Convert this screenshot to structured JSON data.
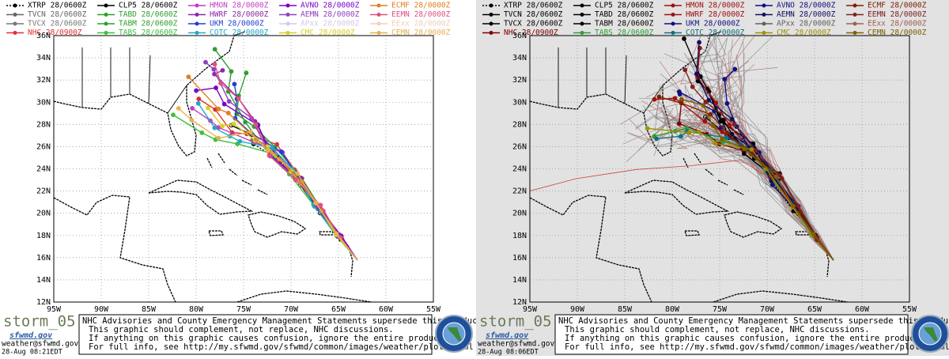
{
  "panels": [
    {
      "background": "#ffffff",
      "legend": [
        {
          "label": "XTRP 28/0600Z",
          "color": "#000000"
        },
        {
          "label": "TVCN 28/0600Z",
          "color": "#666666"
        },
        {
          "label": "TVCX 28/0600Z",
          "color": "#777777"
        },
        {
          "label": "NHC 28/0900Z",
          "color": "#e03030"
        },
        {
          "label": "CLP5 28/0600Z",
          "color": "#000000"
        },
        {
          "label": "TABD 28/0600Z",
          "color": "#2e9e2e"
        },
        {
          "label": "TABM 28/0600Z",
          "color": "#2e9e2e"
        },
        {
          "label": "TABS 28/0600Z",
          "color": "#3cc03c"
        },
        {
          "label": "HMON 28/0000Z",
          "color": "#c040c0"
        },
        {
          "label": "HWRF 28/0000Z",
          "color": "#8a2aa8"
        },
        {
          "label": "UKM 28/0000Z",
          "color": "#2040d0"
        },
        {
          "label": "COTC 28/0000Z",
          "color": "#20a8c8"
        },
        {
          "label": "AVNO 28/0000Z",
          "color": "#7a00c8"
        },
        {
          "label": "AEMN 28/0000Z",
          "color": "#9040c0"
        },
        {
          "label": "APxx 28/0000Z",
          "color": "#d8c8e8"
        },
        {
          "label": "CMC 28/0000Z",
          "color": "#d8d020"
        },
        {
          "label": "ECMF 28/0000Z",
          "color": "#e08020"
        },
        {
          "label": "EEMN 28/0000Z",
          "color": "#e05080"
        },
        {
          "label": "EExx 28/0000Z",
          "color": "#f0d0c0"
        },
        {
          "label": "CEMN 28/0000Z",
          "color": "#e8b050"
        }
      ],
      "x_ticks": [
        "95W",
        "90W",
        "85W",
        "80W",
        "75W",
        "70W",
        "65W",
        "60W",
        "55W"
      ],
      "y_ticks": [
        "36N",
        "34N",
        "32N",
        "30N",
        "28N",
        "26N",
        "24N",
        "22N",
        "20N",
        "18N",
        "16N",
        "14N",
        "12N"
      ],
      "storm": "storm_05",
      "logo_text": "sfwmd.gov",
      "email": "weather@sfwmd.gov",
      "timestamp": "28-Aug 08:21EDT",
      "notice": [
        "NHC Advisories and County Emergency Management Statements supersede this product.",
        "This graphic should complement, not replace, NHC discussions.",
        "If anything on this graphic causes confusion, ignore the entire product.",
        "For full info, see  http://my.sfwmd.gov/sfwmd/common/images/weather/plots.html"
      ]
    },
    {
      "background": "#e2e2e2",
      "legend": [
        {
          "label": "XTRP 28/0600Z",
          "color": "#000000"
        },
        {
          "label": "TVCN 28/0600Z",
          "color": "#000000"
        },
        {
          "label": "TVCX 28/0600Z",
          "color": "#000000"
        },
        {
          "label": "NHC 28/0900Z",
          "color": "#800000"
        },
        {
          "label": "CLP5 28/0600Z",
          "color": "#000000"
        },
        {
          "label": "TABD 28/0600Z",
          "color": "#000000"
        },
        {
          "label": "TABM 28/0600Z",
          "color": "#000000"
        },
        {
          "label": "TABS 28/0600Z",
          "color": "#2e9e2e"
        },
        {
          "label": "HMON 28/0000Z",
          "color": "#a01010"
        },
        {
          "label": "HWRF 28/0000Z",
          "color": "#a01010"
        },
        {
          "label": "UKM 28/0000Z",
          "color": "#101080"
        },
        {
          "label": "COTC 28/0000Z",
          "color": "#107080"
        },
        {
          "label": "AVNO 28/0000Z",
          "color": "#101080"
        },
        {
          "label": "AEMN 28/0000Z",
          "color": "#101060"
        },
        {
          "label": "APxx 28/0000Z",
          "color": "#606060"
        },
        {
          "label": "CMC 28/0000Z",
          "color": "#a09000"
        },
        {
          "label": "ECMF 28/0000Z",
          "color": "#802000"
        },
        {
          "label": "EEMN 28/0000Z",
          "color": "#802020"
        },
        {
          "label": "EExx 28/0000Z",
          "color": "#a06050"
        },
        {
          "label": "CEMN 28/0000Z",
          "color": "#806000"
        }
      ],
      "x_ticks": [
        "95W",
        "90W",
        "85W",
        "80W",
        "75W",
        "70W",
        "65W",
        "60W",
        "55W"
      ],
      "y_ticks": [
        "36N",
        "34N",
        "32N",
        "30N",
        "28N",
        "26N",
        "24N",
        "22N",
        "20N",
        "18N",
        "16N",
        "14N",
        "12N"
      ],
      "storm": "storm_05",
      "logo_text": "sfwmd.gov",
      "email": "weather@sfwmd.gov",
      "timestamp": "28-Aug 08:06EDT",
      "notice": [
        "NHC Advisories and County Emergency Management Statements supersede this product.",
        "This graphic should complement, not replace, NHC discussions.",
        "If anything on this graphic causes confusion, ignore the entire product.",
        "For full info, see  http://my.sfwmd.gov/sfwmd/common/images/weather/plots.html"
      ]
    }
  ]
}
